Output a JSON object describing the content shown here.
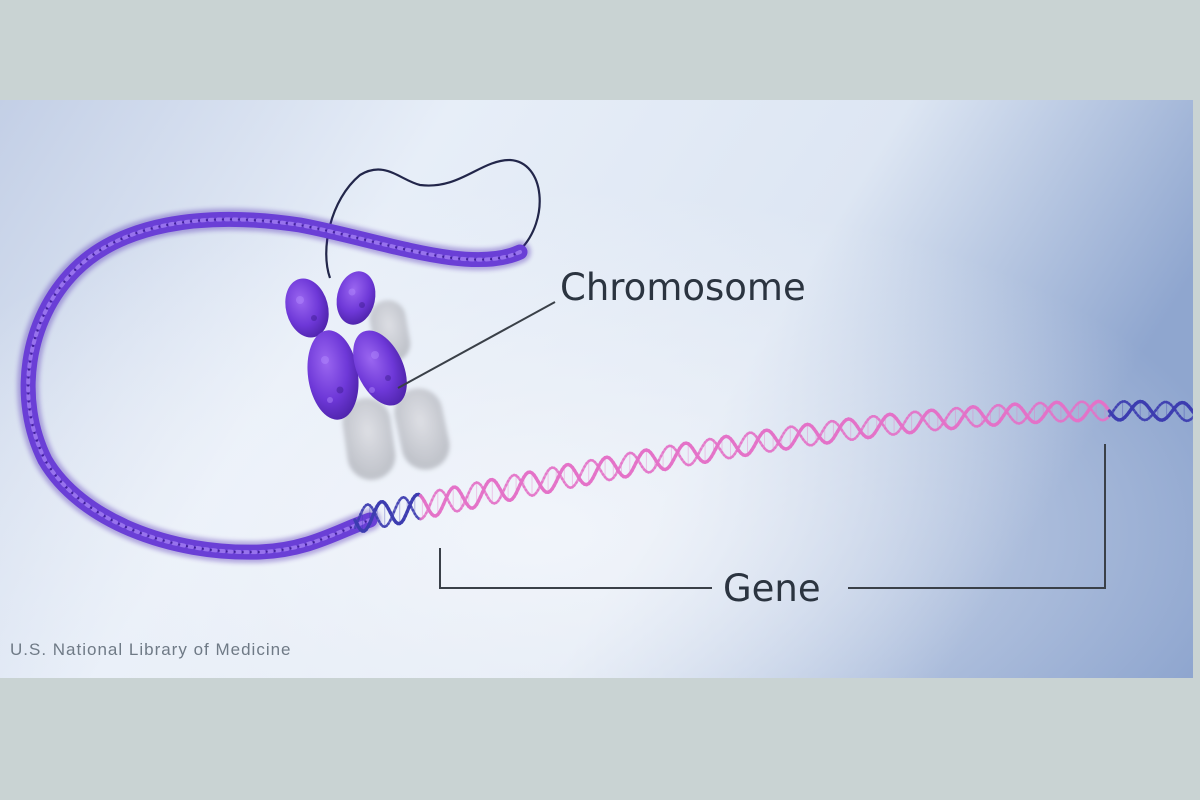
{
  "diagram": {
    "labels": {
      "chromosome": "Chromosome",
      "gene": "Gene"
    },
    "credit": "U.S. National Library of Medicine",
    "colors": {
      "outer_background": "#c9d3d3",
      "panel_light": "#e6eef8",
      "panel_blue": "#8fa6cf",
      "chromatin": "#6a3fd6",
      "chromosome": "#7a43e0",
      "dna_dark": "#3c3cb0",
      "gene_strand": "#e472c8",
      "label_text": "#2b3440",
      "leader_line": "#3a4048"
    }
  }
}
